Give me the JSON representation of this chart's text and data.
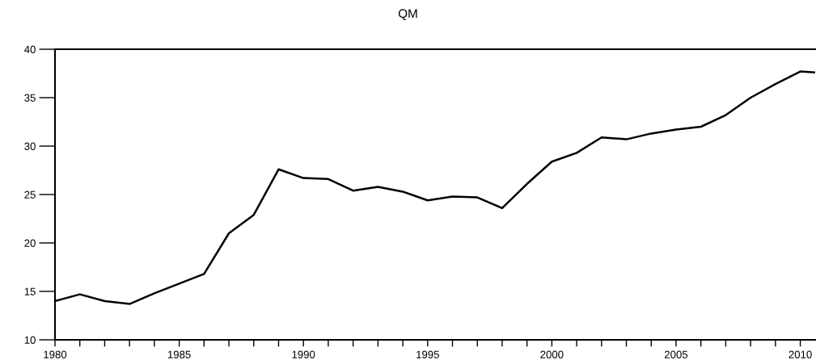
{
  "chart_data": {
    "type": "line",
    "title": "QM",
    "x": [
      1980,
      1981,
      1982,
      1983,
      1984,
      1985,
      1986,
      1987,
      1988,
      1989,
      1990,
      1991,
      1992,
      1993,
      1994,
      1995,
      1996,
      1997,
      1998,
      1999,
      2000,
      2001,
      2002,
      2003,
      2004,
      2005,
      2006,
      2007,
      2008,
      2009,
      2010,
      2010.6
    ],
    "series": [
      {
        "color": "#000000",
        "values": [
          14.0,
          14.7,
          14.0,
          13.7,
          14.8,
          15.8,
          16.8,
          21.0,
          22.9,
          27.6,
          26.7,
          26.6,
          25.4,
          25.8,
          25.3,
          24.4,
          24.8,
          24.7,
          23.6,
          26.1,
          28.4,
          29.3,
          30.9,
          30.7,
          31.3,
          31.7,
          32.0,
          33.2,
          35.0,
          36.4,
          37.7,
          37.6
        ]
      }
    ],
    "xlim": [
      1980,
      2010.6
    ],
    "ylim": [
      10,
      40
    ],
    "xticks": [
      1980,
      {
        "value": 1981,
        "label": null
      },
      {
        "value": 1982,
        "label": null
      },
      {
        "value": 1983,
        "label": null
      },
      {
        "value": 1984,
        "label": null
      },
      1985,
      {
        "value": 1986,
        "label": null
      },
      {
        "value": 1987,
        "label": null
      },
      {
        "value": 1988,
        "label": null
      },
      {
        "value": 1989,
        "label": null
      },
      1990,
      {
        "value": 1991,
        "label": null
      },
      {
        "value": 1992,
        "label": null
      },
      {
        "value": 1993,
        "label": null
      },
      {
        "value": 1994,
        "label": null
      },
      1995,
      {
        "value": 1996,
        "label": null
      },
      {
        "value": 1997,
        "label": null
      },
      {
        "value": 1998,
        "label": null
      },
      {
        "value": 1999,
        "label": null
      },
      2000,
      {
        "value": 2001,
        "label": null
      },
      {
        "value": 2002,
        "label": null
      },
      {
        "value": 2003,
        "label": null
      },
      {
        "value": 2004,
        "label": null
      },
      2005,
      {
        "value": 2006,
        "label": null
      },
      {
        "value": 2007,
        "label": null
      },
      {
        "value": 2008,
        "label": null
      },
      {
        "value": 2009,
        "label": null
      },
      2010
    ],
    "yticks": [
      10,
      15,
      20,
      25,
      30,
      35,
      40
    ],
    "grid": false,
    "marker": "none",
    "line_style": "solid"
  }
}
